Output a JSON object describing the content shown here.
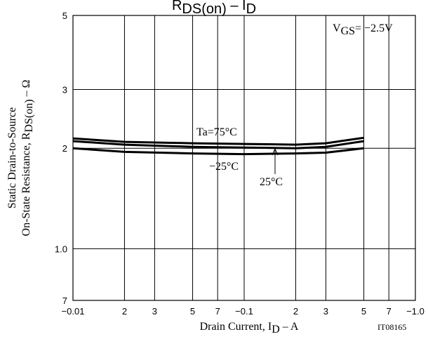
{
  "chart_data": {
    "type": "line",
    "title_parts": [
      "R",
      "DS(on)",
      " – I",
      "D"
    ],
    "y_label_lines": [
      [
        "Static Drain-to-Source"
      ],
      [
        "On-State Resistance, R",
        "DS(on)",
        " – Ω"
      ]
    ],
    "x_label_parts": [
      "Drain Current, I",
      "D",
      " – A"
    ],
    "condition_parts": [
      "V",
      "GS",
      "= −2.5V"
    ],
    "figure_id": "IT08165",
    "xlog": true,
    "ylog": true,
    "grid": true,
    "xlim": [
      0.01,
      1
    ],
    "xticks": [
      {
        "value": 0.01,
        "label": "−0.01"
      },
      {
        "value": 0.02,
        "label": "2"
      },
      {
        "value": 0.03,
        "label": "3"
      },
      {
        "value": 0.05,
        "label": "5"
      },
      {
        "value": 0.07,
        "label": "7"
      },
      {
        "value": 0.1,
        "label": "−0.1"
      },
      {
        "value": 0.2,
        "label": "2"
      },
      {
        "value": 0.3,
        "label": "3"
      },
      {
        "value": 0.5,
        "label": "5"
      },
      {
        "value": 0.7,
        "label": "7"
      },
      {
        "value": 1,
        "label": "−1.0"
      }
    ],
    "ylim": [
      0.7,
      5
    ],
    "yticks": [
      {
        "value": 0.7,
        "label": "7"
      },
      {
        "value": 1,
        "label": "1.0"
      },
      2,
      3,
      5
    ],
    "x": [
      0.01,
      0.02,
      0.05,
      0.1,
      0.2,
      0.3,
      0.5
    ],
    "series": [
      {
        "name": "Ta=75°C",
        "color": "#000000",
        "values": [
          2.14,
          2.09,
          2.07,
          2.06,
          2.05,
          2.07,
          2.15
        ]
      },
      {
        "name": "25°C",
        "color": "#000000",
        "values": [
          2.1,
          2.05,
          2.02,
          2.01,
          2.0,
          2.02,
          2.1
        ]
      },
      {
        "name": "−25°C",
        "color": "#000000",
        "values": [
          2.0,
          1.95,
          1.93,
          1.92,
          1.93,
          1.94,
          2.0
        ]
      }
    ]
  }
}
